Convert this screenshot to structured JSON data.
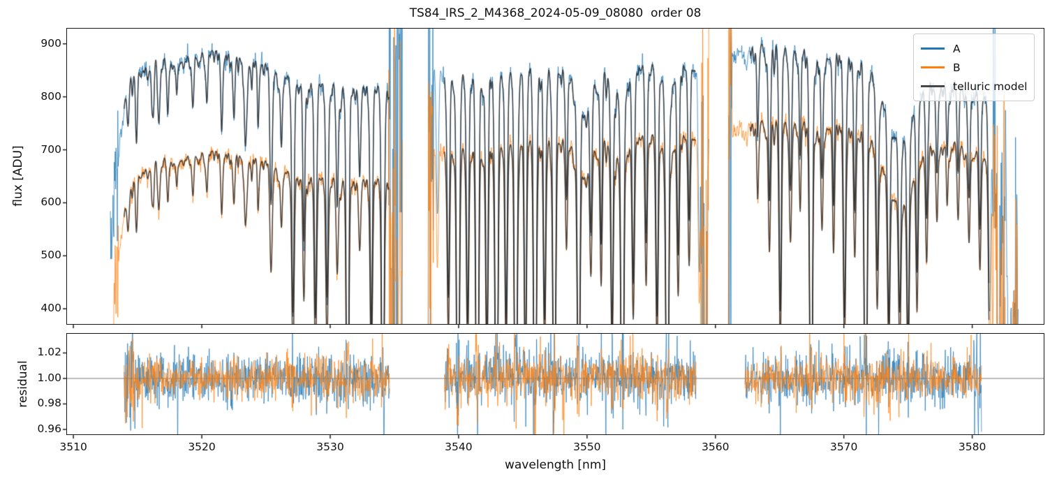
{
  "title": "TS84_IRS_2_M4368_2024-05-09_08080  order 08",
  "legend": {
    "items": [
      {
        "label": "A",
        "color": "#1f77b4"
      },
      {
        "label": "B",
        "color": "#ff7f0e"
      },
      {
        "label": "telluric model",
        "color": "#474747"
      }
    ]
  },
  "chart_data": {
    "type": "line",
    "title": "TS84_IRS_2_M4368_2024-05-09_08080  order 08",
    "xlabel": "wavelength [nm]",
    "colors": {
      "A": "#1f77b4",
      "B": "#ff7f0e",
      "model": "#242424",
      "hline": "#7a7a7a"
    },
    "panels": [
      {
        "name": "flux",
        "ylabel": "flux [ADU]",
        "xlim": [
          3509.45,
          3585.62
        ],
        "ylim": [
          370,
          930
        ],
        "yticks": [
          400,
          500,
          600,
          700,
          800,
          900
        ],
        "xticks": [
          3510,
          3520,
          3530,
          3540,
          3550,
          3560,
          3570,
          3580
        ],
        "series": [
          "A",
          "B",
          "telluric model"
        ],
        "grid": false,
        "legend_position": "upper right"
      },
      {
        "name": "residual",
        "ylabel": "residual",
        "xlim": [
          3509.45,
          3585.62
        ],
        "ylim": [
          0.9556,
          1.0356
        ],
        "yticks": [
          0.96,
          0.98,
          1.0,
          1.02
        ],
        "xticks": [
          3510,
          3520,
          3530,
          3540,
          3550,
          3560,
          3570,
          3580
        ],
        "hline": 1.0,
        "series": [
          "A",
          "B"
        ],
        "grid": false
      }
    ],
    "segments": [
      {
        "xstart": 3512.88,
        "xend": 3535.65,
        "model_range": [
          3513.95,
          3534.6
        ],
        "start_spike": [
          "B"
        ],
        "contA": [
          [
            3512.9,
            520
          ],
          [
            3513.3,
            640
          ],
          [
            3513.8,
            762
          ],
          [
            3514.3,
            845
          ],
          [
            3515,
            862
          ],
          [
            3517,
            876
          ],
          [
            3519,
            882
          ],
          [
            3521,
            888
          ],
          [
            3523,
            878
          ],
          [
            3524.5,
            868
          ],
          [
            3526,
            852
          ],
          [
            3527,
            843
          ],
          [
            3528.5,
            832
          ],
          [
            3530,
            826
          ],
          [
            3532,
            820
          ],
          [
            3533.5,
            823
          ],
          [
            3535.6,
            818
          ]
        ],
        "contB": [
          [
            3512.9,
            300
          ],
          [
            3513.4,
            480
          ],
          [
            3514,
            590
          ],
          [
            3514.6,
            648
          ],
          [
            3515.3,
            668
          ],
          [
            3517,
            687
          ],
          [
            3519,
            693
          ],
          [
            3521,
            698
          ],
          [
            3523,
            692
          ],
          [
            3524.5,
            684
          ],
          [
            3526,
            670
          ],
          [
            3527,
            662
          ],
          [
            3528.5,
            653
          ],
          [
            3530,
            648
          ],
          [
            3532,
            644
          ],
          [
            3533.5,
            647
          ],
          [
            3535.6,
            644
          ]
        ],
        "lines": [
          [
            3514.25,
            0.09,
            0.07
          ],
          [
            3514.9,
            0.13,
            0.07
          ],
          [
            3516.2,
            0.09,
            0.07
          ],
          [
            3516.65,
            0.13,
            0.07
          ],
          [
            3517.35,
            0.11,
            0.08
          ],
          [
            3518.05,
            0.07,
            0.06
          ],
          [
            3519.3,
            0.11,
            0.08
          ],
          [
            3520.4,
            0.09,
            0.07
          ],
          [
            3521.55,
            0.13,
            0.08
          ],
          [
            3522.5,
            0.09,
            0.07
          ],
          [
            3523.4,
            0.18,
            0.09
          ],
          [
            3524.4,
            0.11,
            0.07
          ],
          [
            3525.4,
            0.29,
            0.09
          ],
          [
            3526.2,
            0.13,
            0.07
          ],
          [
            3527.1,
            0.53,
            0.09
          ],
          [
            3527.95,
            0.36,
            0.08
          ],
          [
            3528.85,
            0.52,
            0.09
          ],
          [
            3529.75,
            0.46,
            0.09
          ],
          [
            3530.55,
            0.24,
            0.08
          ],
          [
            3531.35,
            1.02,
            0.09
          ],
          [
            3532.3,
            0.2,
            0.08
          ],
          [
            3533.2,
            0.56,
            0.09
          ],
          [
            3534.1,
            1.02,
            0.09
          ],
          [
            3534.8,
            0.5,
            0.08
          ]
        ]
      },
      {
        "xstart": 3537.62,
        "xend": 3559.5,
        "model_range": [
          3538.9,
          3558.45
        ],
        "start_spike": [
          "A",
          "B"
        ],
        "contA": [
          [
            3537.65,
            845
          ],
          [
            3539,
            843
          ],
          [
            3541,
            848
          ],
          [
            3543,
            852
          ],
          [
            3545,
            856
          ],
          [
            3547,
            858
          ],
          [
            3548.5,
            856
          ],
          [
            3550,
            852
          ],
          [
            3552,
            858
          ],
          [
            3554,
            864
          ],
          [
            3556,
            868
          ],
          [
            3557.5,
            866
          ],
          [
            3559.4,
            858
          ]
        ],
        "contB": [
          [
            3537.65,
            700
          ],
          [
            3539,
            702
          ],
          [
            3541,
            708
          ],
          [
            3543,
            714
          ],
          [
            3545,
            719
          ],
          [
            3547,
            723
          ],
          [
            3548.5,
            724
          ],
          [
            3550,
            722
          ],
          [
            3552,
            727
          ],
          [
            3554,
            731
          ],
          [
            3556,
            734
          ],
          [
            3557.5,
            733
          ],
          [
            3559.4,
            727
          ]
        ],
        "lines": [
          [
            3538.35,
            0.3,
            0.08
          ],
          [
            3539.2,
            0.5,
            0.09
          ],
          [
            3539.95,
            1.02,
            0.1
          ],
          [
            3540.7,
            0.55,
            0.09
          ],
          [
            3541.45,
            1.02,
            0.1
          ],
          [
            3542.2,
            0.6,
            0.09
          ],
          [
            3542.95,
            1.02,
            0.1
          ],
          [
            3543.7,
            0.55,
            0.09
          ],
          [
            3544.45,
            1.02,
            0.1
          ],
          [
            3545.2,
            0.65,
            0.09
          ],
          [
            3545.95,
            1.02,
            0.1
          ],
          [
            3546.7,
            0.55,
            0.09
          ],
          [
            3547.45,
            0.95,
            0.1
          ],
          [
            3548.4,
            0.28,
            0.08
          ],
          [
            3549.35,
            0.8,
            0.1
          ],
          [
            3549.8,
            0.07,
            0.6
          ],
          [
            3550.3,
            0.32,
            0.08
          ],
          [
            3551.1,
            0.38,
            0.08
          ],
          [
            3551.95,
            0.55,
            0.09
          ],
          [
            3552.5,
            0.06,
            0.5
          ],
          [
            3552.75,
            1.02,
            0.1
          ],
          [
            3553.6,
            0.45,
            0.09
          ],
          [
            3554.6,
            0.38,
            0.08
          ],
          [
            3555.45,
            0.55,
            0.09
          ],
          [
            3556.25,
            1.02,
            0.1
          ],
          [
            3556.3,
            0.06,
            0.5
          ],
          [
            3557.1,
            0.4,
            0.08
          ],
          [
            3557.95,
            0.33,
            0.08
          ],
          [
            3558.75,
            0.45,
            0.08
          ],
          [
            3559.25,
            0.6,
            0.09
          ]
        ]
      },
      {
        "xstart": 3561.0,
        "xend": 3583.6,
        "model_range": [
          3562.7,
          3581.3
        ],
        "start_spike": [
          "A",
          "B"
        ],
        "contA": [
          [
            3561.05,
            885
          ],
          [
            3562,
            893
          ],
          [
            3563.5,
            903
          ],
          [
            3565,
            898
          ],
          [
            3567,
            893
          ],
          [
            3569,
            889
          ],
          [
            3570.5,
            884
          ],
          [
            3572,
            868
          ],
          [
            3573,
            848
          ],
          [
            3574,
            826
          ],
          [
            3574.8,
            815
          ],
          [
            3575.6,
            822
          ],
          [
            3576.5,
            830
          ],
          [
            3578,
            832
          ],
          [
            3579.5,
            825
          ],
          [
            3580.5,
            812
          ],
          [
            3581.2,
            800
          ],
          [
            3582,
            700
          ],
          [
            3582.7,
            470
          ],
          [
            3583.5,
            380
          ]
        ],
        "contB": [
          [
            3561.05,
            742
          ],
          [
            3562,
            748
          ],
          [
            3563.5,
            757
          ],
          [
            3565,
            756
          ],
          [
            3567,
            757
          ],
          [
            3569,
            754
          ],
          [
            3570.5,
            751
          ],
          [
            3572,
            737
          ],
          [
            3573,
            715
          ],
          [
            3574,
            690
          ],
          [
            3574.8,
            676
          ],
          [
            3575.6,
            690
          ],
          [
            3576.5,
            710
          ],
          [
            3578,
            718
          ],
          [
            3579.5,
            710
          ],
          [
            3580.5,
            700
          ],
          [
            3581.2,
            680
          ],
          [
            3582,
            560
          ],
          [
            3582.7,
            430
          ],
          [
            3583.5,
            360
          ]
        ],
        "lines": [
          [
            3563.3,
            0.16,
            0.08
          ],
          [
            3564.2,
            0.3,
            0.08
          ],
          [
            3565.05,
            0.55,
            0.09
          ],
          [
            3565.85,
            0.3,
            0.08
          ],
          [
            3566.6,
            0.2,
            0.07
          ],
          [
            3567.45,
            1.02,
            0.1
          ],
          [
            3568.3,
            0.26,
            0.08
          ],
          [
            3569.2,
            0.3,
            0.08
          ],
          [
            3570.05,
            0.55,
            0.09
          ],
          [
            3570.85,
            0.32,
            0.08
          ],
          [
            3571.7,
            1.02,
            0.1
          ],
          [
            3572.6,
            0.42,
            0.09
          ],
          [
            3573.5,
            0.5,
            0.09
          ],
          [
            3574.2,
            0.12,
            1.0
          ],
          [
            3574.35,
            0.45,
            0.09
          ],
          [
            3575.0,
            0.55,
            0.09
          ],
          [
            3575.7,
            0.4,
            0.08
          ],
          [
            3576.45,
            0.3,
            0.08
          ],
          [
            3577.25,
            0.2,
            0.07
          ],
          [
            3578.05,
            0.15,
            0.07
          ],
          [
            3578.9,
            0.2,
            0.07
          ],
          [
            3579.75,
            0.25,
            0.08
          ],
          [
            3580.6,
            0.32,
            0.08
          ],
          [
            3581.35,
            0.5,
            0.09
          ],
          [
            3582.05,
            0.75,
            0.1
          ],
          [
            3582.9,
            0.85,
            0.09
          ]
        ]
      }
    ],
    "residual_clusters": [
      [
        3513.95,
        3534.65
      ],
      [
        3538.9,
        3558.5
      ],
      [
        3562.3,
        3580.75
      ]
    ],
    "noise": {
      "flux_sigma_adu": 8,
      "residual_sigma": 0.0082,
      "edge_zones": [
        [
          3512.88,
          3513.5,
          6,
          0.05
        ],
        [
          3534.55,
          3535.68,
          28,
          0.15
        ],
        [
          3537.62,
          3538.05,
          22,
          0.12
        ],
        [
          3558.85,
          3559.52,
          24,
          0.12
        ],
        [
          3561.0,
          3561.3,
          22,
          0.12
        ],
        [
          3581.55,
          3583.62,
          20,
          0.11
        ]
      ],
      "res_boost": [
        [
          3513.95,
          3514.8,
          2.2,
          "*"
        ],
        [
          3580.1,
          3580.78,
          2.8,
          "A"
        ]
      ]
    }
  }
}
